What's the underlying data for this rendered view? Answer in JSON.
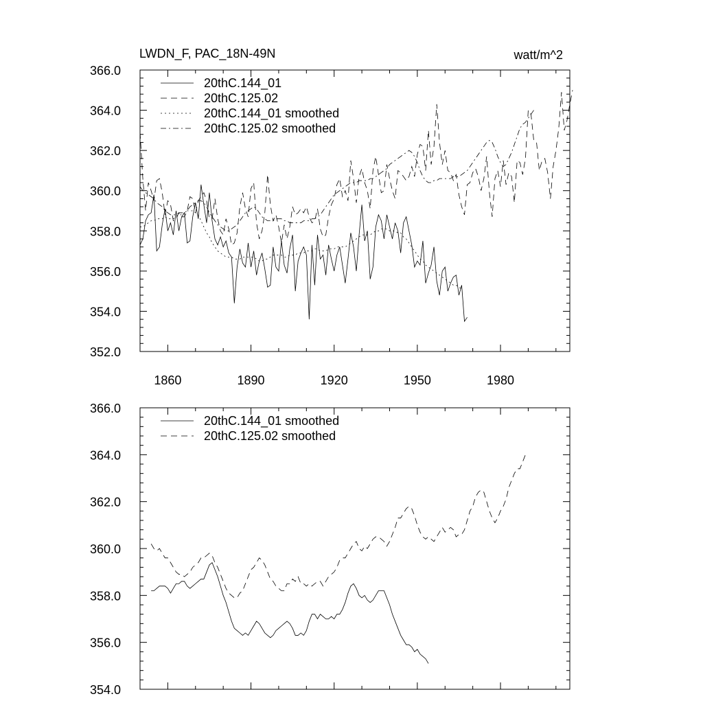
{
  "figure": {
    "title_left": "LWDN_F, PAC_18N-49N",
    "title_right": "watt/m^2"
  },
  "chart_data": [
    {
      "type": "line",
      "xlim": [
        1850,
        2005
      ],
      "ylim": [
        352.0,
        366.0
      ],
      "x_ticks": [
        1860,
        1890,
        1920,
        1950,
        1980
      ],
      "y_ticks": [
        "352.0",
        "354.0",
        "356.0",
        "358.0",
        "360.0",
        "362.0",
        "364.0",
        "366.0"
      ],
      "legend_position": "top-left",
      "series": [
        {
          "name": "20thC.144_01",
          "style": "solid",
          "x_start": 1850,
          "values": [
            357.3,
            357.6,
            358.5,
            358.8,
            358.9,
            359.8,
            357.0,
            357.2,
            358.3,
            359.1,
            358.0,
            358.4,
            357.8,
            359.0,
            358.0,
            358.7,
            358.9,
            357.4,
            357.5,
            358.7,
            359.4,
            358.6,
            360.3,
            359.3,
            358.4,
            359.9,
            358.5,
            357.6,
            357.3,
            357.7,
            357.2,
            357.5,
            356.9,
            356.7,
            354.4,
            356.2,
            357.1,
            356.4,
            356.2,
            357.4,
            356.2,
            357.0,
            355.8,
            356.5,
            356.9,
            356.1,
            355.2,
            355.3,
            357.2,
            356.2,
            356.0,
            357.5,
            356.3,
            355.9,
            357.1,
            357.8,
            355.0,
            356.5,
            356.9,
            357.2,
            356.8,
            353.6,
            357.3,
            355.3,
            357.8,
            356.6,
            356.8,
            355.8,
            357.3,
            356.6,
            356.0,
            356.8,
            357.2,
            356.3,
            355.4,
            356.6,
            357.9,
            357.2,
            356.0,
            357.8,
            359.3,
            357.5,
            358.0,
            355.6,
            356.2,
            358.2,
            358.8,
            358.5,
            357.6,
            358.8,
            358.2,
            357.6,
            358.4,
            358.0,
            356.9,
            358.4,
            358.7,
            358.0,
            357.3,
            356.2,
            356.5,
            356.3,
            357.5,
            355.4,
            355.9,
            356.3,
            357.2,
            355.5,
            354.8,
            356.0,
            356.2,
            355.0,
            355.4,
            355.7,
            355.8,
            354.8,
            355.3,
            353.5,
            353.7
          ]
        },
        {
          "name": "20thC.125.02",
          "style": "dashed",
          "x_start": 1850,
          "values": [
            362.9,
            360.6,
            359.0,
            360.4,
            360.0,
            359.5,
            360.5,
            360.6,
            359.9,
            358.8,
            359.5,
            359.3,
            358.5,
            358.6,
            358.9,
            358.7,
            358.7,
            359.0,
            359.7,
            359.6,
            358.9,
            359.5,
            359.7,
            359.9,
            359.5,
            358.6,
            358.6,
            359.6,
            358.6,
            358.0,
            357.8,
            358.6,
            358.1,
            357.3,
            357.4,
            357.9,
            359.2,
            359.9,
            359.1,
            358.7,
            360.1,
            360.4,
            358.4,
            357.6,
            358.0,
            358.9,
            360.8,
            359.3,
            358.5,
            358.8,
            358.2,
            357.4,
            358.3,
            357.6,
            358.2,
            359.2,
            358.8,
            358.9,
            359.1,
            358.9,
            359.2,
            358.7,
            358.4,
            358.5,
            359.1,
            358.1,
            357.7,
            357.8,
            358.7,
            359.3,
            359.6,
            360.3,
            360.6,
            359.7,
            360.0,
            359.5,
            361.5,
            360.6,
            359.4,
            360.7,
            361.1,
            360.4,
            360.0,
            359.1,
            361.0,
            361.7,
            360.8,
            359.9,
            360.0,
            361.3,
            360.6,
            360.0,
            359.6,
            361.0,
            360.9,
            360.7,
            360.5,
            360.7,
            361.2,
            360.7,
            361.8,
            362.3,
            362.2,
            361.0,
            363.0,
            361.3,
            362.2,
            364.3,
            362.4,
            361.3,
            362.0,
            361.0,
            360.9,
            360.5,
            360.8,
            359.8,
            359.2,
            358.8,
            360.3,
            360.4,
            360.9,
            361.1,
            360.7,
            360.0,
            360.6,
            361.7,
            359.9,
            358.7,
            360.6,
            361.0,
            360.2,
            361.5,
            360.3,
            360.9,
            360.7,
            359.4,
            361.5,
            361.4,
            360.8,
            361.6,
            364.0,
            363.8,
            362.5,
            362.4,
            361.0,
            361.5,
            361.6,
            360.9,
            359.6,
            361.2,
            362.0,
            363.1,
            364.9,
            363.0,
            363.5,
            364.3,
            365.0
          ]
        },
        {
          "name": "20thC.144_01 smoothed",
          "style": "dotted",
          "x_start": 1850,
          "values": [
            358.2,
            358.2,
            358.3,
            358.4,
            358.5,
            358.5,
            358.6,
            358.6,
            358.6,
            358.7,
            358.6,
            358.6,
            358.6,
            358.7,
            358.8,
            358.8,
            358.9,
            359.0,
            359.0,
            359.0,
            358.9,
            358.8,
            358.5,
            358.2,
            357.9,
            357.7,
            357.4,
            357.2,
            357.0,
            356.9,
            356.8,
            356.7,
            356.7,
            356.7,
            356.6,
            356.6,
            356.6,
            356.7,
            356.7,
            356.7,
            356.7,
            356.7,
            356.6,
            356.5,
            356.5,
            356.6,
            356.6,
            356.7,
            356.8,
            356.8,
            356.8,
            356.8,
            356.7,
            356.7,
            356.8,
            356.8,
            356.8,
            356.9,
            356.9,
            356.9,
            357.0,
            357.0,
            357.0,
            357.1,
            357.1,
            357.0,
            357.0,
            357.0,
            357.1,
            357.1,
            357.1,
            357.2,
            357.2,
            357.2,
            357.2,
            357.3,
            357.4,
            357.5,
            357.6,
            357.7,
            357.8,
            357.8,
            357.8,
            357.8,
            357.9,
            358.0,
            358.0,
            358.1,
            358.1,
            358.1,
            358.0,
            358.0,
            358.0,
            357.9,
            357.9,
            357.7,
            357.6,
            357.4,
            357.2,
            357.0,
            356.8,
            356.6,
            356.5,
            356.3,
            356.2,
            356.1,
            356.0,
            355.9,
            355.8,
            355.7,
            355.6,
            355.5,
            355.4,
            355.3,
            355.3,
            355.2,
            355.1
          ]
        },
        {
          "name": "20thC.125.02 smoothed",
          "style": "dashdot",
          "x_start": 1850,
          "values": [
            360.2,
            360.0,
            359.9,
            359.8,
            359.7,
            359.6,
            359.4,
            359.3,
            359.2,
            359.0,
            358.9,
            358.8,
            358.8,
            358.8,
            358.9,
            358.9,
            358.9,
            359.0,
            359.2,
            359.3,
            359.4,
            359.5,
            359.5,
            359.4,
            359.2,
            358.9,
            358.7,
            358.5,
            358.3,
            358.2,
            358.1,
            358.0,
            358.0,
            358.1,
            358.2,
            358.3,
            358.5,
            358.7,
            358.9,
            359.0,
            359.1,
            359.2,
            359.1,
            358.9,
            358.7,
            358.6,
            358.5,
            358.5,
            358.5,
            358.6,
            358.6,
            358.6,
            358.5,
            358.5,
            358.4,
            358.4,
            358.4,
            358.4,
            358.4,
            358.5,
            358.5,
            358.5,
            358.6,
            358.6,
            358.7,
            358.8,
            359.0,
            359.2,
            359.4,
            359.6,
            359.8,
            359.9,
            360.0,
            360.1,
            360.2,
            360.3,
            360.4,
            360.4,
            360.4,
            360.5,
            360.5,
            360.5,
            360.5,
            360.6,
            360.6,
            360.7,
            360.8,
            360.9,
            361.0,
            361.1,
            361.3,
            361.4,
            361.5,
            361.6,
            361.7,
            361.8,
            361.9,
            362.0,
            361.9,
            361.7,
            361.4,
            361.0,
            360.7,
            360.5,
            360.4,
            360.4,
            360.5,
            360.5,
            360.6,
            360.6,
            360.6,
            360.6,
            360.6,
            360.7,
            360.7,
            360.7,
            360.8,
            360.9,
            361.0,
            361.2,
            361.4,
            361.6,
            361.8,
            362.0,
            362.2,
            362.4,
            362.5,
            362.4,
            362.1,
            361.7,
            361.4,
            361.2,
            361.3,
            361.6,
            361.9,
            362.3,
            362.7,
            363.1,
            363.3,
            363.4,
            363.6,
            363.8,
            364.0
          ]
        }
      ]
    },
    {
      "type": "line",
      "xlim": [
        1850,
        2005
      ],
      "ylim": [
        354.0,
        366.0
      ],
      "y_ticks": [
        "354.0",
        "356.0",
        "358.0",
        "360.0",
        "362.0",
        "364.0",
        "366.0"
      ],
      "legend_position": "top-left",
      "series": [
        {
          "name": "20thC.144_01 smoothed",
          "style": "solid",
          "x_start": 1854,
          "values": [
            358.2,
            358.2,
            358.3,
            358.4,
            358.4,
            358.4,
            358.3,
            358.1,
            358.3,
            358.5,
            358.5,
            358.6,
            358.6,
            358.4,
            358.3,
            358.4,
            358.5,
            358.6,
            358.7,
            358.7,
            359.0,
            359.3,
            359.4,
            359.1,
            358.8,
            358.4,
            358.0,
            357.7,
            357.3,
            356.9,
            356.6,
            356.5,
            356.4,
            356.3,
            356.4,
            356.3,
            356.5,
            356.7,
            356.9,
            356.8,
            356.6,
            356.4,
            356.3,
            356.2,
            356.3,
            356.5,
            356.6,
            356.7,
            356.8,
            356.9,
            356.8,
            356.6,
            356.3,
            356.3,
            356.4,
            356.3,
            356.5,
            356.9,
            357.2,
            357.2,
            357.0,
            357.2,
            357.1,
            357.0,
            357.0,
            357.1,
            357.0,
            357.2,
            357.2,
            357.4,
            357.7,
            358.1,
            358.4,
            358.5,
            358.3,
            358.0,
            357.9,
            358.0,
            357.8,
            357.7,
            357.8,
            358.0,
            358.2,
            358.2,
            358.2,
            357.9,
            357.6,
            357.2,
            356.9,
            356.6,
            356.3,
            356.1,
            355.9,
            355.9,
            355.8,
            355.6,
            355.7,
            355.5,
            355.4,
            355.3,
            355.1
          ]
        },
        {
          "name": "20thC.125.02 smoothed",
          "style": "dashed",
          "x_start": 1854,
          "values": [
            360.2,
            360.0,
            359.9,
            360.0,
            359.8,
            359.6,
            359.6,
            359.4,
            359.2,
            359.0,
            358.9,
            358.9,
            358.8,
            358.9,
            359.0,
            359.2,
            359.3,
            359.4,
            359.6,
            359.6,
            359.7,
            359.8,
            359.7,
            359.4,
            359.2,
            358.9,
            358.6,
            358.3,
            358.1,
            358.0,
            357.9,
            357.9,
            358.1,
            358.2,
            358.5,
            358.8,
            359.1,
            359.2,
            359.4,
            359.6,
            359.5,
            359.3,
            359.0,
            358.7,
            358.6,
            358.4,
            358.3,
            358.2,
            358.2,
            358.5,
            358.5,
            358.7,
            358.6,
            358.8,
            358.5,
            358.5,
            358.4,
            358.5,
            358.4,
            358.5,
            358.6,
            358.6,
            358.4,
            358.6,
            358.8,
            358.9,
            359.0,
            359.2,
            359.5,
            359.6,
            359.6,
            359.8,
            360.0,
            360.2,
            360.3,
            360.0,
            359.9,
            360.1,
            360.0,
            360.2,
            360.4,
            360.5,
            360.5,
            360.4,
            360.3,
            360.1,
            360.3,
            360.6,
            360.9,
            361.3,
            361.3,
            361.5,
            361.7,
            361.8,
            361.7,
            361.4,
            361.0,
            360.7,
            360.5,
            360.4,
            360.5,
            360.4,
            360.3,
            360.5,
            360.7,
            360.9,
            360.7,
            360.8,
            360.9,
            360.8,
            360.5,
            360.6,
            360.6,
            360.8,
            361.2,
            361.6,
            361.8,
            362.2,
            362.4,
            362.5,
            362.4,
            362.0,
            361.6,
            361.3,
            361.1,
            361.3,
            361.6,
            361.8,
            362.1,
            362.6,
            362.9,
            363.2,
            363.4,
            363.4,
            363.7,
            364.0
          ]
        }
      ]
    }
  ]
}
